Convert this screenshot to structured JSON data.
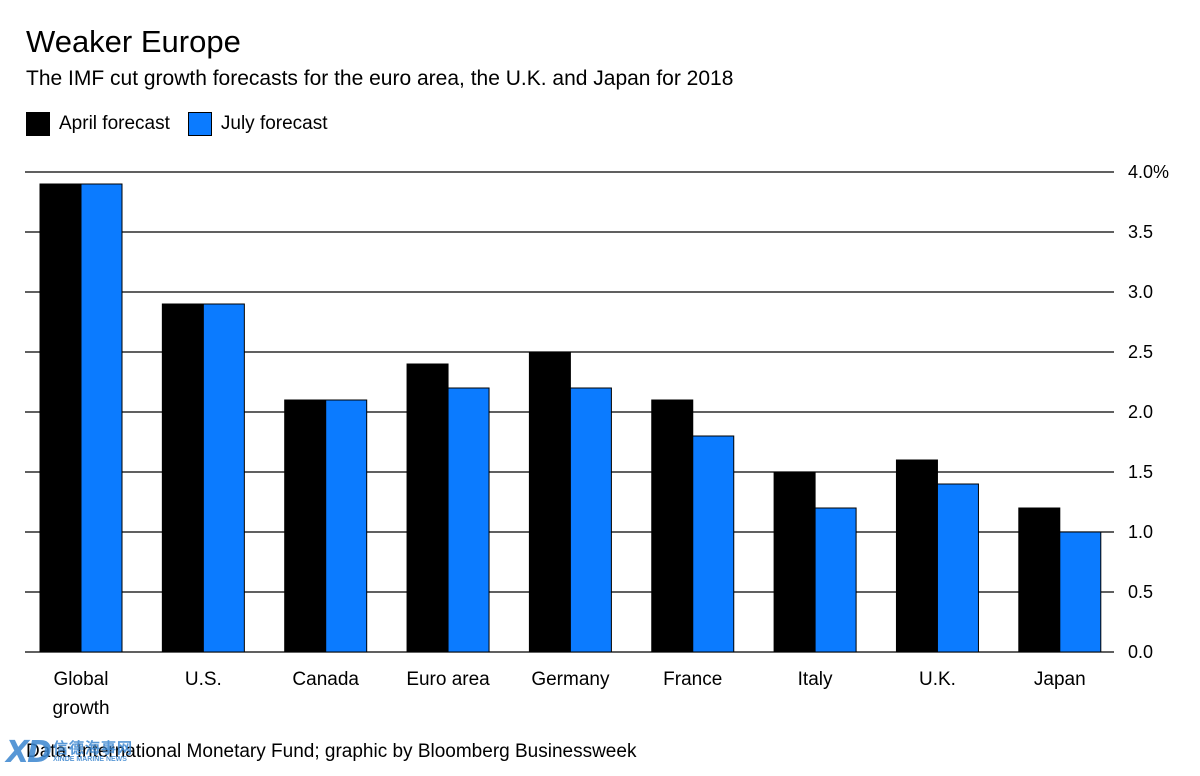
{
  "chart_data": {
    "type": "bar",
    "title": "Weaker Europe",
    "subtitle": "The IMF cut growth forecasts for the euro area, the U.K. and Japan for 2018",
    "categories": [
      "Global\ngrowth",
      "U.S.",
      "Canada",
      "Euro area",
      "Germany",
      "France",
      "Italy",
      "U.K.",
      "Japan"
    ],
    "series": [
      {
        "name": "April forecast",
        "color": "#000000",
        "values": [
          3.9,
          2.9,
          2.1,
          2.4,
          2.5,
          2.1,
          1.5,
          1.6,
          1.2
        ]
      },
      {
        "name": "July forecast",
        "color": "#0b7bff",
        "values": [
          3.9,
          2.9,
          2.1,
          2.2,
          2.2,
          1.8,
          1.2,
          1.4,
          1.0
        ]
      }
    ],
    "ylim": [
      0,
      4.0
    ],
    "yticks": [
      "0.0",
      "0.5",
      "1.0",
      "1.5",
      "2.0",
      "2.5",
      "3.0",
      "3.5",
      "4.0%"
    ],
    "ytick_values": [
      0,
      0.5,
      1.0,
      1.5,
      2.0,
      2.5,
      3.0,
      3.5,
      4.0
    ],
    "grid": true,
    "legend_position": "top-left",
    "source": "Data: International Monetary Fund; graphic by Bloomberg Businessweek"
  },
  "watermark": {
    "mark": "XD",
    "cn": "信德海事网",
    "en": "XINDE MARINE NEWS"
  }
}
